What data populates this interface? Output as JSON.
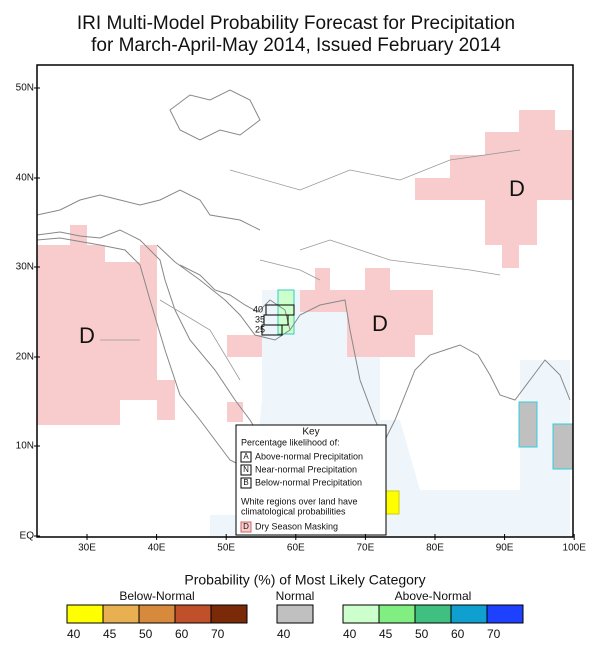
{
  "title": [
    "IRI Multi-Model Probability Forecast for Precipitation",
    "for March-April-May 2014, Issued February 2014"
  ],
  "map": {
    "lat_labels": [
      "50N",
      "40N",
      "30N",
      "20N",
      "10N",
      "EQ"
    ],
    "lon_labels": [
      "30E",
      "40E",
      "50E",
      "60E",
      "70E",
      "80E",
      "90E",
      "100E"
    ],
    "dry_season_labels": [
      "D",
      "D",
      "D"
    ],
    "contour_labels": [
      "40",
      "35",
      "25"
    ]
  },
  "key": {
    "title": "Key",
    "subtitle": "Percentage likelihood of:",
    "items": [
      {
        "symbol": "A",
        "text": "Above-normal Precipitation"
      },
      {
        "symbol": "N",
        "text": "Near-normal Precipitation"
      },
      {
        "symbol": "B",
        "text": "Below-normal Precipitation"
      }
    ],
    "note": [
      "White regions over land have",
      "climatological probabilities"
    ],
    "dry": {
      "symbol": "D",
      "text": "Dry Season Masking"
    }
  },
  "legend": {
    "title": "Probability (%) of Most Likely Category",
    "groups": [
      {
        "name": "Below-Normal",
        "colors": [
          "#ffff00",
          "#e8b050",
          "#d88a3c",
          "#c0502a",
          "#7a2a08"
        ],
        "labels": [
          "40",
          "45",
          "50",
          "60",
          "70"
        ]
      },
      {
        "name": "Normal",
        "colors": [
          "#c0c0c0"
        ],
        "labels": [
          "40"
        ]
      },
      {
        "name": "Above-Normal",
        "colors": [
          "#ccffcc",
          "#80ee80",
          "#40c080",
          "#10a0d0",
          "#1e40ff"
        ],
        "labels": [
          "40",
          "45",
          "50",
          "60",
          "70"
        ]
      }
    ]
  }
}
